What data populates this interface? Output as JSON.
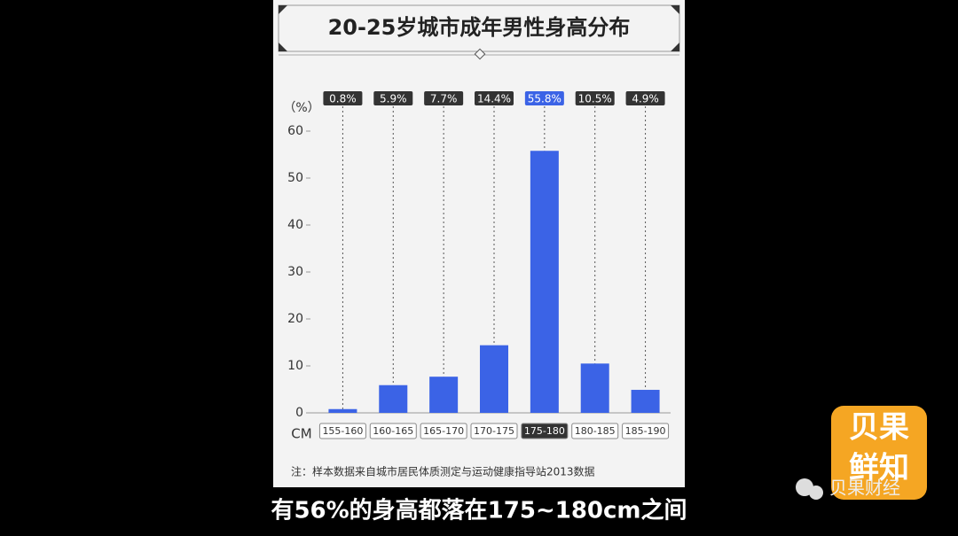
{
  "chart_data": {
    "type": "bar",
    "title": "20-25岁城市成年男性身高分布",
    "y_unit": "（%）",
    "x_unit": "CM",
    "categories": [
      "155-160",
      "160-165",
      "165-170",
      "170-175",
      "175-180",
      "180-185",
      "185-190"
    ],
    "values": [
      0.8,
      5.9,
      7.7,
      14.4,
      55.8,
      10.5,
      4.9
    ],
    "value_labels": [
      "0.8%",
      "5.9%",
      "7.7%",
      "14.4%",
      "55.8%",
      "10.5%",
      "4.9%"
    ],
    "color": "#3b63e6",
    "label_colors": [
      "#333333",
      "#333333",
      "#333333",
      "#333333",
      "#3b63e6",
      "#333333",
      "#333333"
    ],
    "ylim": [
      0,
      60
    ],
    "yticks": [
      0,
      10,
      20,
      30,
      40,
      50,
      60
    ],
    "note": "注：样本数据来自城市居民体质测定与运动健康指导站2013数据"
  },
  "caption": "有56%的身高都落在175~180cm之间",
  "logo": {
    "line1": "贝果",
    "line2": "鲜知"
  },
  "watermark": "贝果财经"
}
